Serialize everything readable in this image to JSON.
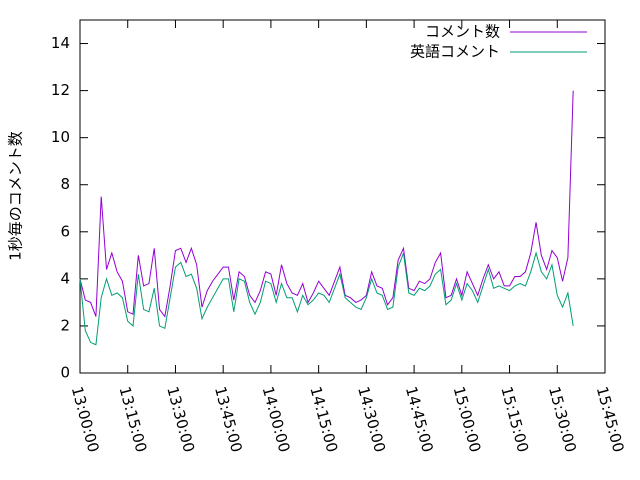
{
  "chart_data": {
    "type": "line",
    "ylabel": "1秒毎のコメント数",
    "x": [
      "13:00:00",
      "13:01:40",
      "13:03:20",
      "13:05:00",
      "13:06:40",
      "13:08:20",
      "13:10:00",
      "13:11:40",
      "13:13:20",
      "13:15:00",
      "13:16:40",
      "13:18:20",
      "13:20:00",
      "13:21:40",
      "13:23:20",
      "13:25:00",
      "13:26:40",
      "13:28:20",
      "13:30:00",
      "13:31:40",
      "13:33:20",
      "13:35:00",
      "13:36:40",
      "13:38:20",
      "13:40:00",
      "13:41:40",
      "13:43:20",
      "13:45:00",
      "13:46:40",
      "13:48:20",
      "13:50:00",
      "13:51:40",
      "13:53:20",
      "13:55:00",
      "13:56:40",
      "13:58:20",
      "14:00:00",
      "14:01:40",
      "14:03:20",
      "14:05:00",
      "14:06:40",
      "14:08:20",
      "14:10:00",
      "14:11:40",
      "14:13:20",
      "14:15:00",
      "14:16:40",
      "14:18:20",
      "14:20:00",
      "14:21:40",
      "14:23:20",
      "14:25:00",
      "14:26:40",
      "14:28:20",
      "14:30:00",
      "14:31:40",
      "14:33:20",
      "14:35:00",
      "14:36:40",
      "14:38:20",
      "14:40:00",
      "14:41:40",
      "14:43:20",
      "14:45:00",
      "14:46:40",
      "14:48:20",
      "14:50:00",
      "14:51:40",
      "14:53:20",
      "14:55:00",
      "14:56:40",
      "14:58:20",
      "15:00:00",
      "15:01:40",
      "15:03:20",
      "15:05:00",
      "15:06:40",
      "15:08:20",
      "15:10:00",
      "15:11:40",
      "15:13:20",
      "15:15:00",
      "15:16:40",
      "15:18:20",
      "15:20:00",
      "15:21:40",
      "15:23:20",
      "15:25:00",
      "15:26:40",
      "15:28:20",
      "15:30:00",
      "15:31:40",
      "15:33:20",
      "15:35:00"
    ],
    "series": [
      {
        "name": "コメント数",
        "color": "#9400d3",
        "values": [
          4.0,
          3.1,
          3.0,
          2.4,
          7.5,
          4.4,
          5.1,
          4.3,
          3.9,
          2.6,
          2.5,
          5.0,
          3.7,
          3.8,
          5.3,
          2.7,
          2.4,
          3.7,
          5.2,
          5.3,
          4.7,
          5.3,
          4.6,
          2.8,
          3.5,
          3.9,
          4.2,
          4.5,
          4.5,
          3.1,
          4.3,
          4.1,
          3.3,
          3.0,
          3.5,
          4.3,
          4.2,
          3.3,
          4.6,
          3.8,
          3.4,
          3.3,
          3.8,
          3.0,
          3.4,
          3.9,
          3.6,
          3.3,
          3.9,
          4.5,
          3.3,
          3.2,
          3.0,
          3.1,
          3.3,
          4.3,
          3.7,
          3.6,
          2.9,
          3.2,
          4.8,
          5.3,
          3.6,
          3.5,
          3.9,
          3.8,
          4.0,
          4.7,
          5.1,
          3.2,
          3.3,
          4.0,
          3.3,
          4.3,
          3.8,
          3.3,
          4.0,
          4.6,
          4.0,
          4.3,
          3.7,
          3.7,
          4.1,
          4.1,
          4.3,
          5.1,
          6.4,
          5.0,
          4.4,
          5.2,
          4.9,
          3.9,
          4.9,
          12.0
        ]
      },
      {
        "name": "英語コメント",
        "color": "#009e73",
        "values": [
          4.0,
          1.8,
          1.3,
          1.2,
          3.2,
          4.0,
          3.3,
          3.4,
          3.2,
          2.2,
          2.0,
          4.2,
          2.7,
          2.6,
          3.6,
          2.0,
          1.9,
          3.2,
          4.5,
          4.7,
          4.1,
          4.2,
          3.6,
          2.3,
          2.8,
          3.2,
          3.6,
          4.0,
          4.0,
          2.6,
          4.0,
          3.9,
          3.0,
          2.5,
          3.0,
          3.9,
          3.8,
          3.0,
          3.8,
          3.2,
          3.2,
          2.6,
          3.3,
          2.9,
          3.1,
          3.4,
          3.3,
          3.0,
          3.6,
          4.2,
          3.2,
          3.0,
          2.8,
          2.7,
          3.2,
          4.0,
          3.4,
          3.3,
          2.7,
          2.8,
          4.5,
          5.1,
          3.4,
          3.3,
          3.6,
          3.5,
          3.7,
          4.2,
          4.4,
          2.9,
          3.1,
          3.8,
          3.1,
          3.8,
          3.5,
          3.0,
          3.7,
          4.4,
          3.6,
          3.7,
          3.6,
          3.5,
          3.7,
          3.8,
          3.7,
          4.3,
          5.1,
          4.3,
          4.0,
          4.6,
          3.3,
          2.8,
          3.4,
          2.0
        ]
      }
    ],
    "xlim": [
      "13:00:00",
      "15:45:00"
    ],
    "xticks": [
      "13:00:00",
      "13:15:00",
      "13:30:00",
      "13:45:00",
      "14:00:00",
      "14:15:00",
      "14:30:00",
      "14:45:00",
      "15:00:00",
      "15:15:00",
      "15:30:00",
      "15:45:00"
    ],
    "ylim": [
      0,
      15
    ],
    "yticks": [
      0,
      2,
      4,
      6,
      8,
      10,
      12,
      14
    ],
    "legend": "top right"
  }
}
